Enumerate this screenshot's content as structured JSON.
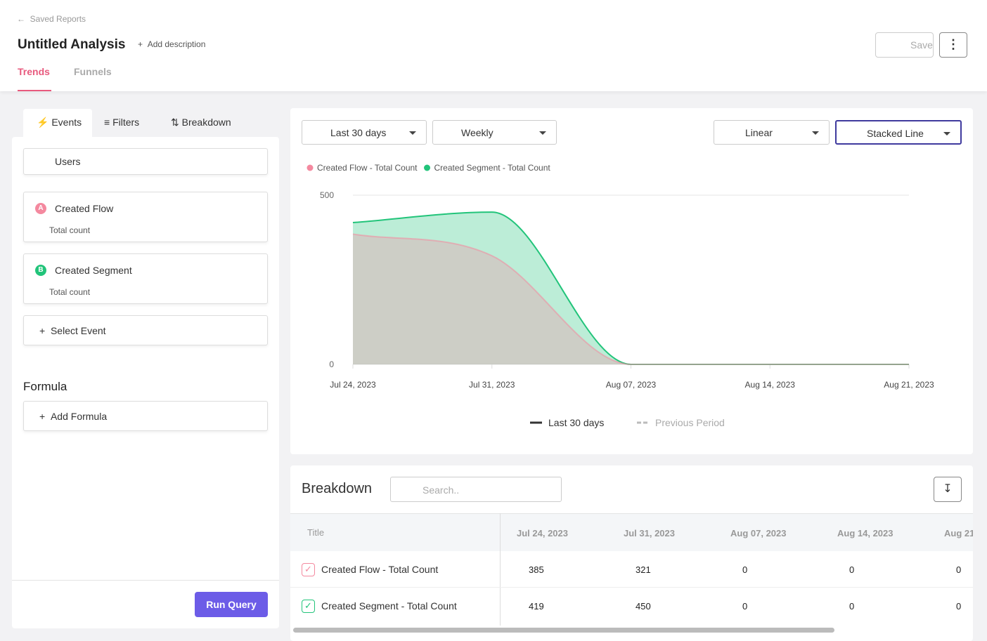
{
  "nav": {
    "back": "Saved Reports"
  },
  "header": {
    "title": "Untitled Analysis",
    "add_description": "Add description",
    "save": "Save",
    "tabs": [
      "Trends",
      "Funnels"
    ]
  },
  "panel": {
    "tabs": [
      "Events",
      "Filters",
      "Breakdown"
    ],
    "users": "Users",
    "events": [
      {
        "badge": "A",
        "name": "Created Flow",
        "sub": "Total count"
      },
      {
        "badge": "B",
        "name": "Created Segment",
        "sub": "Total count"
      }
    ],
    "select_event": "Select Event",
    "formula_title": "Formula",
    "add_formula": "Add Formula",
    "run": "Run Query"
  },
  "controls": {
    "range": "Last 30 days",
    "interval": "Weekly",
    "scale": "Linear",
    "style": "Stacked Line"
  },
  "chart_data": {
    "type": "area",
    "categories": [
      "Jul 24, 2023",
      "Jul 31, 2023",
      "Aug 07, 2023",
      "Aug 14, 2023",
      "Aug 21, 2023"
    ],
    "series": [
      {
        "name": "Created Flow - Total Count",
        "color": "#f4899f",
        "values": [
          385,
          321,
          0,
          0,
          0
        ]
      },
      {
        "name": "Created Segment - Total Count",
        "color": "#22c47a",
        "values": [
          419,
          450,
          0,
          0,
          0
        ]
      }
    ],
    "ylim": [
      0,
      500
    ],
    "yticks": [
      0,
      500
    ],
    "grid": true,
    "period_legend": [
      "Last 30 days",
      "Previous Period"
    ]
  },
  "breakdown": {
    "title": "Breakdown",
    "search": "Search..",
    "column_title": "Title"
  }
}
